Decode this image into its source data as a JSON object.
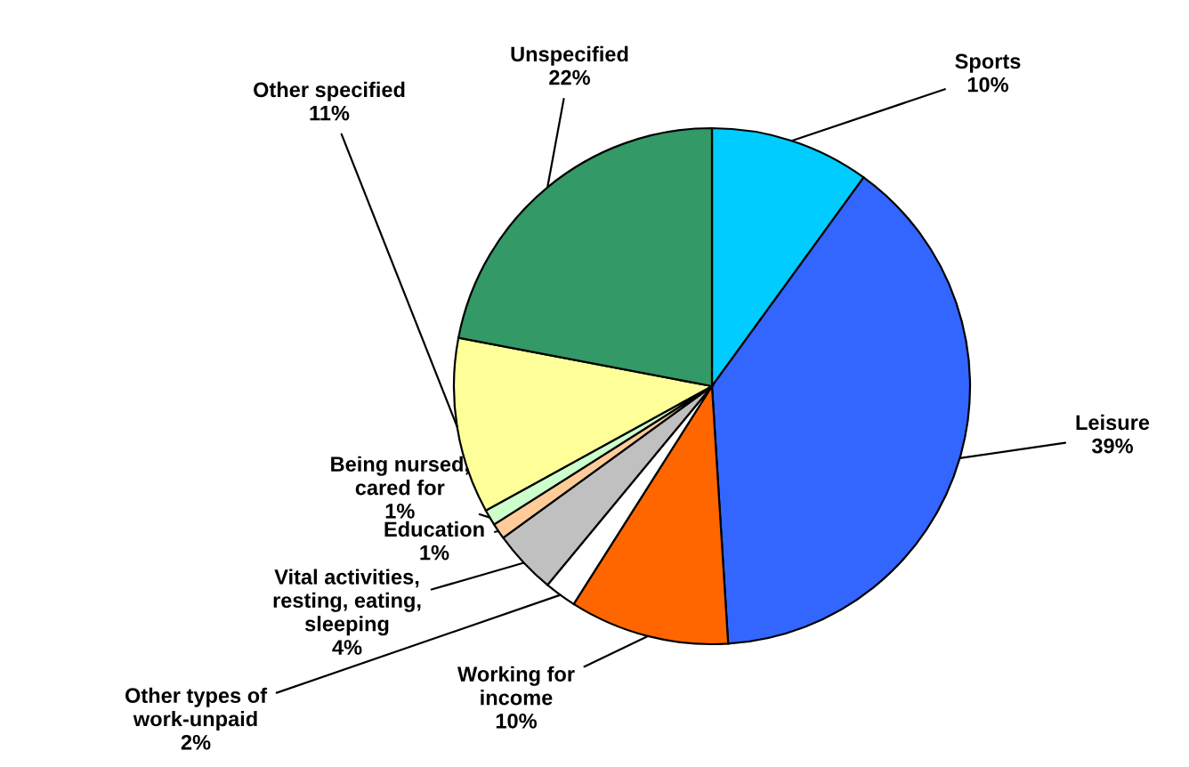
{
  "chart_data": {
    "type": "pie",
    "categories": [
      "Sports",
      "Leisure",
      "Working for\nincome",
      "Other types of\nwork-unpaid",
      "Vital activities,\nresting, eating,\nsleeping",
      "Education",
      "Being nursed,\ncared for",
      "Other specified",
      "Unspecified"
    ],
    "values": [
      10,
      39,
      10,
      2,
      4,
      1,
      1,
      11,
      22
    ],
    "value_labels": [
      "10%",
      "39%",
      "10%",
      "2%",
      "4%",
      "1%",
      "1%",
      "11%",
      "22%"
    ],
    "colors": [
      "#00ccff",
      "#3366ff",
      "#ff6600",
      "#ffffff",
      "#c0c0c0",
      "#ffcc99",
      "#ccffcc",
      "#ffff99",
      "#339966"
    ]
  }
}
